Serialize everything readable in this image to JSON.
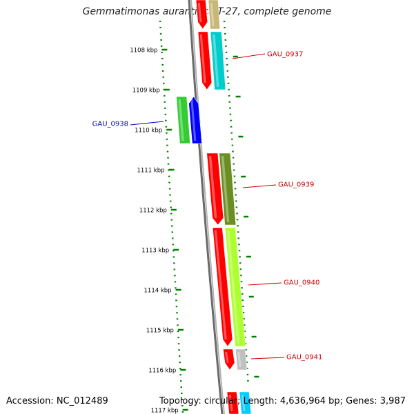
{
  "title": "Gemmatimonas aurantiaca T-27, complete genome",
  "footer": {
    "accession": "Accession: NC_012489",
    "summary": "Topology: circular; Length: 4,636,964 bp; Genes: 3,987"
  },
  "colors": {
    "backbone": "#888888",
    "dots": "#008000",
    "red": "#ff0000",
    "blue": "#0000ff",
    "green": "#33cc33",
    "cyan": "#00cccc",
    "tan": "#c8b878",
    "olive": "#6b8e23",
    "lime": "#adff2f",
    "gray": "#c0c0c0",
    "label_red": "#cc0000",
    "label_blue": "#0000cc"
  },
  "scale_ticks": [
    "1108 kbp",
    "1109 kbp",
    "1110 kbp",
    "1111 kbp",
    "1112 kbp",
    "1113 kbp",
    "1114 kbp",
    "1115 kbp",
    "1116 kbp",
    "1117 kbp"
  ],
  "gene_labels": [
    {
      "name": "GAU_0937",
      "color": "label_red"
    },
    {
      "name": "GAU_0938",
      "color": "label_blue"
    },
    {
      "name": "GAU_0939",
      "color": "label_red"
    },
    {
      "name": "GAU_0940",
      "color": "label_red"
    },
    {
      "name": "GAU_0941",
      "color": "label_red"
    }
  ]
}
